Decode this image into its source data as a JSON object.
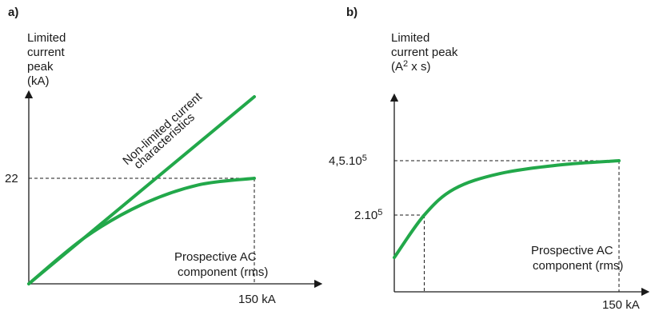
{
  "colors": {
    "curve": "#22a84a",
    "axis": "#1a1a1a"
  },
  "chart_data": [
    {
      "panel": "a)",
      "type": "line",
      "ylabel": [
        "Limited",
        "current",
        "peak",
        "(kA)"
      ],
      "xlabel": [
        "Prospective AC",
        "component (rms)"
      ],
      "x_tick": "150 kA",
      "y_tick": "22",
      "xlim": [
        0,
        150
      ],
      "ylim": [
        0,
        22
      ],
      "series": [
        {
          "name": "Non-limited current characteristics",
          "label_lines": [
            "Non-limited current",
            "characteristics"
          ],
          "x": [
            0,
            150
          ],
          "y": [
            0,
            39
          ]
        },
        {
          "x": [
            0,
            37.5,
            75,
            112.5,
            150
          ],
          "y": [
            0,
            9.7,
            16.5,
            20.6,
            22
          ]
        }
      ]
    },
    {
      "panel": "b)",
      "type": "line",
      "ylabel": [
        "Limited",
        "current peak",
        "(A² x s)"
      ],
      "ylabel_parts": [
        "(A",
        "2",
        " x s)"
      ],
      "xlabel": [
        "Prospective AC",
        "component (rms)"
      ],
      "x_tick": "150 kA",
      "y_ticks": [
        {
          "value": 450000,
          "base": "4,5.10",
          "exp": "5"
        },
        {
          "value": 200000,
          "base": "2.10",
          "exp": "5"
        }
      ],
      "xlim": [
        0,
        150
      ],
      "series": [
        {
          "x": [
            0,
            20,
            40,
            70,
            110,
            150
          ],
          "y": [
            4700,
            200000,
            320000,
            390000,
            430000,
            450000
          ]
        }
      ]
    }
  ]
}
